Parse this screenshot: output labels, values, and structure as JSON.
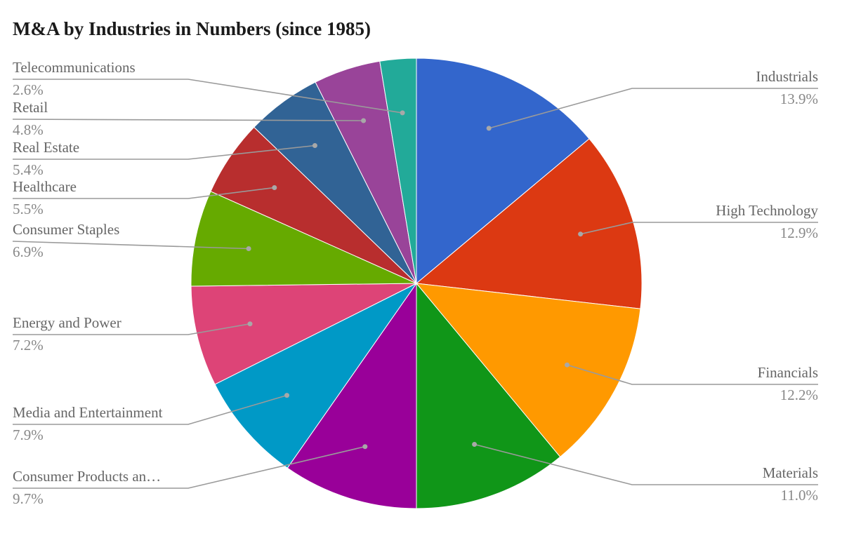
{
  "chart_data": {
    "type": "pie",
    "title": "M&A by Industries in Numbers (since 1985)",
    "slices": [
      {
        "label": "Industrials",
        "value": 13.9,
        "display": "13.9%",
        "color": "#3366cc"
      },
      {
        "label": "High Technology",
        "value": 12.9,
        "display": "12.9%",
        "color": "#dc3912"
      },
      {
        "label": "Financials",
        "value": 12.2,
        "display": "12.2%",
        "color": "#ff9900"
      },
      {
        "label": "Materials",
        "value": 11.0,
        "display": "11.0%",
        "color": "#109618"
      },
      {
        "label": "Consumer Products an…",
        "value": 9.7,
        "display": "9.7%",
        "color": "#990099"
      },
      {
        "label": "Media and Entertainment",
        "value": 7.9,
        "display": "7.9%",
        "color": "#0099c6"
      },
      {
        "label": "Energy and Power",
        "value": 7.2,
        "display": "7.2%",
        "color": "#dd4477"
      },
      {
        "label": "Consumer Staples",
        "value": 6.9,
        "display": "6.9%",
        "color": "#66aa00"
      },
      {
        "label": "Healthcare",
        "value": 5.5,
        "display": "5.5%",
        "color": "#b82e2e"
      },
      {
        "label": "Real Estate",
        "value": 5.4,
        "display": "5.4%",
        "color": "#316395"
      },
      {
        "label": "Retail",
        "value": 4.8,
        "display": "4.8%",
        "color": "#994499"
      },
      {
        "label": "Telecommunications",
        "value": 2.6,
        "display": "2.6%",
        "color": "#22aa99"
      }
    ],
    "start_angle": "12 o'clock",
    "direction": "clockwise",
    "legend": "none",
    "labels": "outside with leader lines"
  }
}
